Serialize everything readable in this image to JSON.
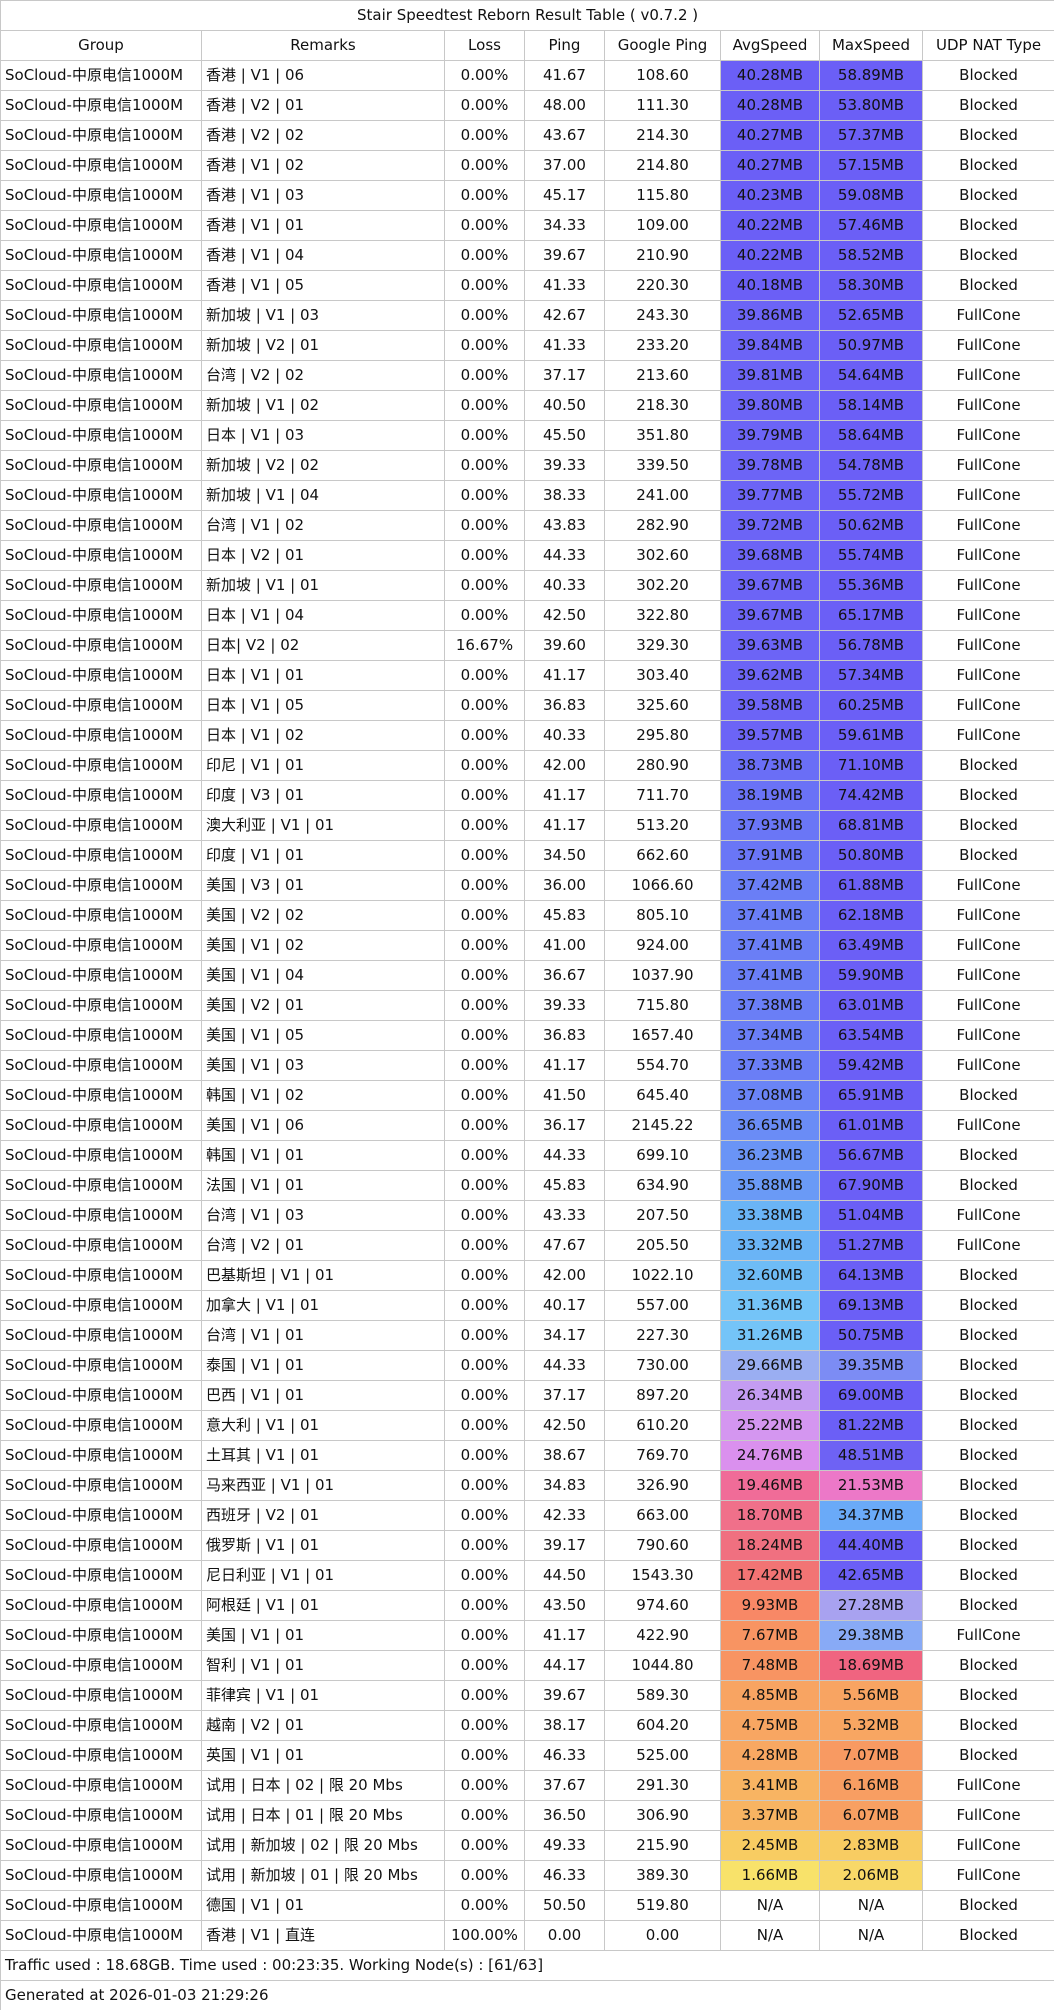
{
  "title": "Stair Speedtest Reborn Result Table ( v0.7.2 )",
  "headers": [
    "Group",
    "Remarks",
    "Loss",
    "Ping",
    "Google Ping",
    "AvgSpeed",
    "MaxSpeed",
    "UDP NAT Type"
  ],
  "rows": [
    [
      "SoCloud-中原电信1000M",
      "香港 | V1 | 06",
      "0.00%",
      "41.67",
      "108.60",
      "40.28MB",
      "58.89MB",
      "Blocked"
    ],
    [
      "SoCloud-中原电信1000M",
      "香港 | V2 | 01",
      "0.00%",
      "48.00",
      "111.30",
      "40.28MB",
      "53.80MB",
      "Blocked"
    ],
    [
      "SoCloud-中原电信1000M",
      "香港 | V2 | 02",
      "0.00%",
      "43.67",
      "214.30",
      "40.27MB",
      "57.37MB",
      "Blocked"
    ],
    [
      "SoCloud-中原电信1000M",
      "香港 | V1 | 02",
      "0.00%",
      "37.00",
      "214.80",
      "40.27MB",
      "57.15MB",
      "Blocked"
    ],
    [
      "SoCloud-中原电信1000M",
      "香港 | V1 | 03",
      "0.00%",
      "45.17",
      "115.80",
      "40.23MB",
      "59.08MB",
      "Blocked"
    ],
    [
      "SoCloud-中原电信1000M",
      "香港 | V1 | 01",
      "0.00%",
      "34.33",
      "109.00",
      "40.22MB",
      "57.46MB",
      "Blocked"
    ],
    [
      "SoCloud-中原电信1000M",
      "香港 | V1 | 04",
      "0.00%",
      "39.67",
      "210.90",
      "40.22MB",
      "58.52MB",
      "Blocked"
    ],
    [
      "SoCloud-中原电信1000M",
      "香港 | V1 | 05",
      "0.00%",
      "41.33",
      "220.30",
      "40.18MB",
      "58.30MB",
      "Blocked"
    ],
    [
      "SoCloud-中原电信1000M",
      "新加坡 | V1 | 03",
      "0.00%",
      "42.67",
      "243.30",
      "39.86MB",
      "52.65MB",
      "FullCone"
    ],
    [
      "SoCloud-中原电信1000M",
      "新加坡 | V2 | 01",
      "0.00%",
      "41.33",
      "233.20",
      "39.84MB",
      "50.97MB",
      "FullCone"
    ],
    [
      "SoCloud-中原电信1000M",
      "台湾 | V2 | 02",
      "0.00%",
      "37.17",
      "213.60",
      "39.81MB",
      "54.64MB",
      "FullCone"
    ],
    [
      "SoCloud-中原电信1000M",
      "新加坡 | V1 | 02",
      "0.00%",
      "40.50",
      "218.30",
      "39.80MB",
      "58.14MB",
      "FullCone"
    ],
    [
      "SoCloud-中原电信1000M",
      "日本 | V1 | 03",
      "0.00%",
      "45.50",
      "351.80",
      "39.79MB",
      "58.64MB",
      "FullCone"
    ],
    [
      "SoCloud-中原电信1000M",
      "新加坡 | V2 | 02",
      "0.00%",
      "39.33",
      "339.50",
      "39.78MB",
      "54.78MB",
      "FullCone"
    ],
    [
      "SoCloud-中原电信1000M",
      "新加坡 | V1 | 04",
      "0.00%",
      "38.33",
      "241.00",
      "39.77MB",
      "55.72MB",
      "FullCone"
    ],
    [
      "SoCloud-中原电信1000M",
      "台湾 | V1 | 02",
      "0.00%",
      "43.83",
      "282.90",
      "39.72MB",
      "50.62MB",
      "FullCone"
    ],
    [
      "SoCloud-中原电信1000M",
      "日本 | V2 | 01",
      "0.00%",
      "44.33",
      "302.60",
      "39.68MB",
      "55.74MB",
      "FullCone"
    ],
    [
      "SoCloud-中原电信1000M",
      "新加坡 | V1 | 01",
      "0.00%",
      "40.33",
      "302.20",
      "39.67MB",
      "55.36MB",
      "FullCone"
    ],
    [
      "SoCloud-中原电信1000M",
      "日本 | V1 | 04",
      "0.00%",
      "42.50",
      "322.80",
      "39.67MB",
      "65.17MB",
      "FullCone"
    ],
    [
      "SoCloud-中原电信1000M",
      "日本| V2 | 02",
      "16.67%",
      "39.60",
      "329.30",
      "39.63MB",
      "56.78MB",
      "FullCone"
    ],
    [
      "SoCloud-中原电信1000M",
      "日本 | V1 | 01",
      "0.00%",
      "41.17",
      "303.40",
      "39.62MB",
      "57.34MB",
      "FullCone"
    ],
    [
      "SoCloud-中原电信1000M",
      "日本 | V1 | 05",
      "0.00%",
      "36.83",
      "325.60",
      "39.58MB",
      "60.25MB",
      "FullCone"
    ],
    [
      "SoCloud-中原电信1000M",
      "日本 | V1 | 02",
      "0.00%",
      "40.33",
      "295.80",
      "39.57MB",
      "59.61MB",
      "FullCone"
    ],
    [
      "SoCloud-中原电信1000M",
      "印尼  | V1 | 01",
      "0.00%",
      "42.00",
      "280.90",
      "38.73MB",
      "71.10MB",
      "Blocked"
    ],
    [
      "SoCloud-中原电信1000M",
      "印度 | V3 | 01",
      "0.00%",
      "41.17",
      "711.70",
      "38.19MB",
      "74.42MB",
      "Blocked"
    ],
    [
      "SoCloud-中原电信1000M",
      "澳大利亚 | V1 | 01",
      "0.00%",
      "41.17",
      "513.20",
      "37.93MB",
      "68.81MB",
      "Blocked"
    ],
    [
      "SoCloud-中原电信1000M",
      "印度 | V1 | 01",
      "0.00%",
      "34.50",
      "662.60",
      "37.91MB",
      "50.80MB",
      "Blocked"
    ],
    [
      "SoCloud-中原电信1000M",
      "美国 | V3 | 01",
      "0.00%",
      "36.00",
      "1066.60",
      "37.42MB",
      "61.88MB",
      "FullCone"
    ],
    [
      "SoCloud-中原电信1000M",
      "美国 | V2 | 02",
      "0.00%",
      "45.83",
      "805.10",
      "37.41MB",
      "62.18MB",
      "FullCone"
    ],
    [
      "SoCloud-中原电信1000M",
      "美国 | V1 | 02",
      "0.00%",
      "41.00",
      "924.00",
      "37.41MB",
      "63.49MB",
      "FullCone"
    ],
    [
      "SoCloud-中原电信1000M",
      "美国 | V1 | 04",
      "0.00%",
      "36.67",
      "1037.90",
      "37.41MB",
      "59.90MB",
      "FullCone"
    ],
    [
      "SoCloud-中原电信1000M",
      "美国 | V2 | 01",
      "0.00%",
      "39.33",
      "715.80",
      "37.38MB",
      "63.01MB",
      "FullCone"
    ],
    [
      "SoCloud-中原电信1000M",
      "美国 | V1 | 05",
      "0.00%",
      "36.83",
      "1657.40",
      "37.34MB",
      "63.54MB",
      "FullCone"
    ],
    [
      "SoCloud-中原电信1000M",
      "美国 | V1 | 03",
      "0.00%",
      "41.17",
      "554.70",
      "37.33MB",
      "59.42MB",
      "FullCone"
    ],
    [
      "SoCloud-中原电信1000M",
      "韩国 | V1 | 02",
      "0.00%",
      "41.50",
      "645.40",
      "37.08MB",
      "65.91MB",
      "Blocked"
    ],
    [
      "SoCloud-中原电信1000M",
      "美国 | V1 | 06",
      "0.00%",
      "36.17",
      "2145.22",
      "36.65MB",
      "61.01MB",
      "FullCone"
    ],
    [
      "SoCloud-中原电信1000M",
      "韩国 | V1 | 01",
      "0.00%",
      "44.33",
      "699.10",
      "36.23MB",
      "56.67MB",
      "Blocked"
    ],
    [
      "SoCloud-中原电信1000M",
      "法国 | V1 | 01",
      "0.00%",
      "45.83",
      "634.90",
      "35.88MB",
      "67.90MB",
      "Blocked"
    ],
    [
      "SoCloud-中原电信1000M",
      "台湾 | V1 | 03",
      "0.00%",
      "43.33",
      "207.50",
      "33.38MB",
      "51.04MB",
      "FullCone"
    ],
    [
      "SoCloud-中原电信1000M",
      "台湾 | V2 | 01",
      "0.00%",
      "47.67",
      "205.50",
      "33.32MB",
      "51.27MB",
      "FullCone"
    ],
    [
      "SoCloud-中原电信1000M",
      "巴基斯坦 | V1 | 01",
      "0.00%",
      "42.00",
      "1022.10",
      "32.60MB",
      "64.13MB",
      "Blocked"
    ],
    [
      "SoCloud-中原电信1000M",
      "加拿大 | V1 | 01",
      "0.00%",
      "40.17",
      "557.00",
      "31.36MB",
      "69.13MB",
      "Blocked"
    ],
    [
      "SoCloud-中原电信1000M",
      "台湾 | V1 | 01",
      "0.00%",
      "34.17",
      "227.30",
      "31.26MB",
      "50.75MB",
      "Blocked"
    ],
    [
      "SoCloud-中原电信1000M",
      "泰国 | V1 | 01",
      "0.00%",
      "44.33",
      "730.00",
      "29.66MB",
      "39.35MB",
      "Blocked"
    ],
    [
      "SoCloud-中原电信1000M",
      "巴西 | V1 | 01",
      "0.00%",
      "37.17",
      "897.20",
      "26.34MB",
      "69.00MB",
      "Blocked"
    ],
    [
      "SoCloud-中原电信1000M",
      "意大利 | V1 | 01",
      "0.00%",
      "42.50",
      "610.20",
      "25.22MB",
      "81.22MB",
      "Blocked"
    ],
    [
      "SoCloud-中原电信1000M",
      "土耳其 | V1 | 01",
      "0.00%",
      "38.67",
      "769.70",
      "24.76MB",
      "48.51MB",
      "Blocked"
    ],
    [
      "SoCloud-中原电信1000M",
      "马来西亚 | V1 | 01",
      "0.00%",
      "34.83",
      "326.90",
      "19.46MB",
      "21.53MB",
      "Blocked"
    ],
    [
      "SoCloud-中原电信1000M",
      "西班牙  | V2 | 01",
      "0.00%",
      "42.33",
      "663.00",
      "18.70MB",
      "34.37MB",
      "Blocked"
    ],
    [
      "SoCloud-中原电信1000M",
      "俄罗斯 | V1 | 01",
      "0.00%",
      "39.17",
      "790.60",
      "18.24MB",
      "44.40MB",
      "Blocked"
    ],
    [
      "SoCloud-中原电信1000M",
      "尼日利亚 | V1 | 01",
      "0.00%",
      "44.50",
      "1543.30",
      "17.42MB",
      "42.65MB",
      "Blocked"
    ],
    [
      "SoCloud-中原电信1000M",
      "阿根廷 | V1 | 01",
      "0.00%",
      "43.50",
      "974.60",
      "9.93MB",
      "27.28MB",
      "Blocked"
    ],
    [
      "SoCloud-中原电信1000M",
      "美国 | V1 | 01",
      "0.00%",
      "41.17",
      "422.90",
      "7.67MB",
      "29.38MB",
      "FullCone"
    ],
    [
      "SoCloud-中原电信1000M",
      "智利  | V1 | 01",
      "0.00%",
      "44.17",
      "1044.80",
      "7.48MB",
      "18.69MB",
      "Blocked"
    ],
    [
      "SoCloud-中原电信1000M",
      "菲律宾 | V1 | 01",
      "0.00%",
      "39.67",
      "589.30",
      "4.85MB",
      "5.56MB",
      "Blocked"
    ],
    [
      "SoCloud-中原电信1000M",
      "越南  | V2 | 01",
      "0.00%",
      "38.17",
      "604.20",
      "4.75MB",
      "5.32MB",
      "Blocked"
    ],
    [
      "SoCloud-中原电信1000M",
      "英国 | V1 | 01",
      "0.00%",
      "46.33",
      "525.00",
      "4.28MB",
      "7.07MB",
      "Blocked"
    ],
    [
      "SoCloud-中原电信1000M",
      "试用 | 日本 | 02 | 限 20 Mbs",
      "0.00%",
      "37.67",
      "291.30",
      "3.41MB",
      "6.16MB",
      "FullCone"
    ],
    [
      "SoCloud-中原电信1000M",
      "试用 | 日本 | 01 | 限 20 Mbs",
      "0.00%",
      "36.50",
      "306.90",
      "3.37MB",
      "6.07MB",
      "FullCone"
    ],
    [
      "SoCloud-中原电信1000M",
      "试用 | 新加坡 | 02 | 限 20 Mbs",
      "0.00%",
      "49.33",
      "215.90",
      "2.45MB",
      "2.83MB",
      "FullCone"
    ],
    [
      "SoCloud-中原电信1000M",
      "试用 | 新加坡 | 01 | 限 20 Mbs",
      "0.00%",
      "46.33",
      "389.30",
      "1.66MB",
      "2.06MB",
      "FullCone"
    ],
    [
      "SoCloud-中原电信1000M",
      "德国 | V1 | 01",
      "0.00%",
      "50.50",
      "519.80",
      "N/A",
      "N/A",
      "Blocked"
    ],
    [
      "SoCloud-中原电信1000M",
      "香港 | V1 | 直连",
      "100.00%",
      "0.00",
      "0.00",
      "N/A",
      "N/A",
      "Blocked"
    ]
  ],
  "avg_colors": [
    "#6b5ff6",
    "#6b5ff6",
    "#6b5ff6",
    "#6b5ff6",
    "#6b5ff6",
    "#6b5ff6",
    "#6b5ff6",
    "#6b5ff6",
    "#6c64f6",
    "#6c64f6",
    "#6c64f6",
    "#6c64f6",
    "#6c64f6",
    "#6c64f6",
    "#6c64f6",
    "#6c64f6",
    "#6c64f6",
    "#6c64f6",
    "#6c64f6",
    "#6c64f6",
    "#6c64f6",
    "#6c64f6",
    "#6c64f6",
    "#6a6ef6",
    "#6a72f6",
    "#6a76f6",
    "#6a76f6",
    "#6a7ef6",
    "#6a7ef6",
    "#6a7ef6",
    "#6a7ef6",
    "#6a7ef6",
    "#6a7ef6",
    "#6a7ef6",
    "#6a84f6",
    "#6a8cf6",
    "#6a94f6",
    "#6a9af6",
    "#6ab4f6",
    "#6ab4f6",
    "#6ebcf6",
    "#74c4f8",
    "#74c4f8",
    "#9aaef2",
    "#c49cf2",
    "#d496f0",
    "#da90ee",
    "#f06c98",
    "#f0708a",
    "#f07080",
    "#f27474",
    "#f88866",
    "#f89462",
    "#f89462",
    "#f8a462",
    "#f8a662",
    "#f8a862",
    "#f8b462",
    "#f8b462",
    "#f8cc62",
    "#f8e26a",
    "#ffffff",
    "#ffffff"
  ],
  "max_colors": [
    "#6b5ff6",
    "#6b5ff6",
    "#6b5ff6",
    "#6b5ff6",
    "#6b5ff6",
    "#6b5ff6",
    "#6b5ff6",
    "#6b5ff6",
    "#6b5ff6",
    "#6b5ff6",
    "#6b5ff6",
    "#6b5ff6",
    "#6b5ff6",
    "#6b5ff6",
    "#6b5ff6",
    "#6b5ff6",
    "#6b5ff6",
    "#6b5ff6",
    "#6b5ff6",
    "#6b5ff6",
    "#6b5ff6",
    "#6b5ff6",
    "#6b5ff6",
    "#6b5ff6",
    "#6b5ff6",
    "#6b5ff6",
    "#6b5ff6",
    "#6b5ff6",
    "#6b5ff6",
    "#6b5ff6",
    "#6b5ff6",
    "#6b5ff6",
    "#6b5ff6",
    "#6b5ff6",
    "#6b5ff6",
    "#6b5ff6",
    "#6b5ff6",
    "#6b5ff6",
    "#6b5ff6",
    "#6b5ff6",
    "#6b5ff6",
    "#6b5ff6",
    "#6b5ff6",
    "#7c8cf4",
    "#6b5ff6",
    "#6b5ff6",
    "#6e62f4",
    "#ec78c8",
    "#6aaaf8",
    "#6b5ff6",
    "#6b5ff6",
    "#a8a2f0",
    "#88aaf6",
    "#f06480",
    "#f8a462",
    "#f8a662",
    "#f89a62",
    "#f89e62",
    "#f8a062",
    "#f8cc62",
    "#f8d868",
    "#ffffff",
    "#ffffff"
  ],
  "footer": [
    "Traffic used : 18.68GB. Time used : 00:23:35. Working Node(s) : [61/63]",
    "Generated at 2026-01-03 21:29:26"
  ]
}
